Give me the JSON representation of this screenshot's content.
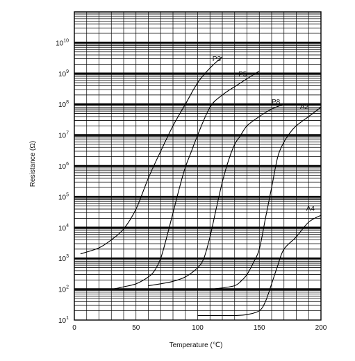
{
  "chart_data": {
    "type": "line",
    "title": "",
    "xlabel": "Temperature (℃)",
    "ylabel": "Resistance (Ω)",
    "xlim": [
      0,
      200
    ],
    "ylim": [
      10,
      100000000000
    ],
    "y_scale": "log",
    "grid": true,
    "x_ticks": [
      "0",
      "50",
      "100",
      "150",
      "200"
    ],
    "y_ticks": [
      {
        "base": "10",
        "exp": "1"
      },
      {
        "base": "10",
        "exp": "2"
      },
      {
        "base": "10",
        "exp": "3"
      },
      {
        "base": "10",
        "exp": "4"
      },
      {
        "base": "10",
        "exp": "5"
      },
      {
        "base": "10",
        "exp": "6"
      },
      {
        "base": "10",
        "exp": "7"
      },
      {
        "base": "10",
        "exp": "8"
      },
      {
        "base": "10",
        "exp": "9"
      },
      {
        "base": "10",
        "exp": "10"
      }
    ],
    "series": [
      {
        "name": "P3",
        "label_at": [
          112,
          2500000000
        ],
        "x": [
          5,
          20,
          30,
          40,
          50,
          60,
          70,
          80,
          90,
          100,
          110,
          120
        ],
        "y": [
          1400,
          2200,
          4000,
          9000,
          40000,
          400000,
          3000000,
          20000000,
          100000000,
          500000000,
          1500000000,
          3500000000
        ]
      },
      {
        "name": "P5",
        "label_at": [
          133,
          800000000
        ],
        "x": [
          15,
          30,
          40,
          50,
          60,
          65,
          70,
          75,
          80,
          85,
          90,
          95,
          100,
          110,
          120,
          135,
          150
        ],
        "y": [
          100,
          100,
          120,
          150,
          250,
          400,
          1000,
          5000,
          30000,
          180000,
          900000,
          3000000,
          10000000,
          80000000,
          200000000,
          500000000,
          1200000000
        ]
      },
      {
        "name": "P8",
        "label_at": [
          160,
          100000000
        ],
        "x": [
          60,
          70,
          80,
          90,
          100,
          105,
          110,
          115,
          120,
          125,
          130,
          135,
          140,
          150,
          160,
          170
        ],
        "y": [
          130,
          150,
          180,
          250,
          500,
          1000,
          5000,
          40000,
          300000,
          1500000,
          5000000,
          10000000,
          20000000,
          40000000,
          70000000,
          100000000
        ]
      },
      {
        "name": "A2",
        "label_at": [
          183,
          70000000
        ],
        "x": [
          110,
          120,
          130,
          135,
          140,
          145,
          150,
          155,
          160,
          165,
          170,
          175,
          180,
          190,
          200
        ],
        "y": [
          100,
          110,
          130,
          180,
          300,
          700,
          2000,
          20000,
          200000,
          2000000,
          6000000,
          12000000,
          20000000,
          40000000,
          80000000
        ]
      },
      {
        "name": "A4",
        "label_at": [
          188,
          35000
        ],
        "x": [
          100,
          120,
          130,
          140,
          150,
          155,
          160,
          165,
          170,
          180,
          190,
          200
        ],
        "y": [
          14,
          14,
          14,
          15,
          20,
          40,
          150,
          600,
          2000,
          5000,
          15000,
          25000
        ]
      }
    ]
  }
}
